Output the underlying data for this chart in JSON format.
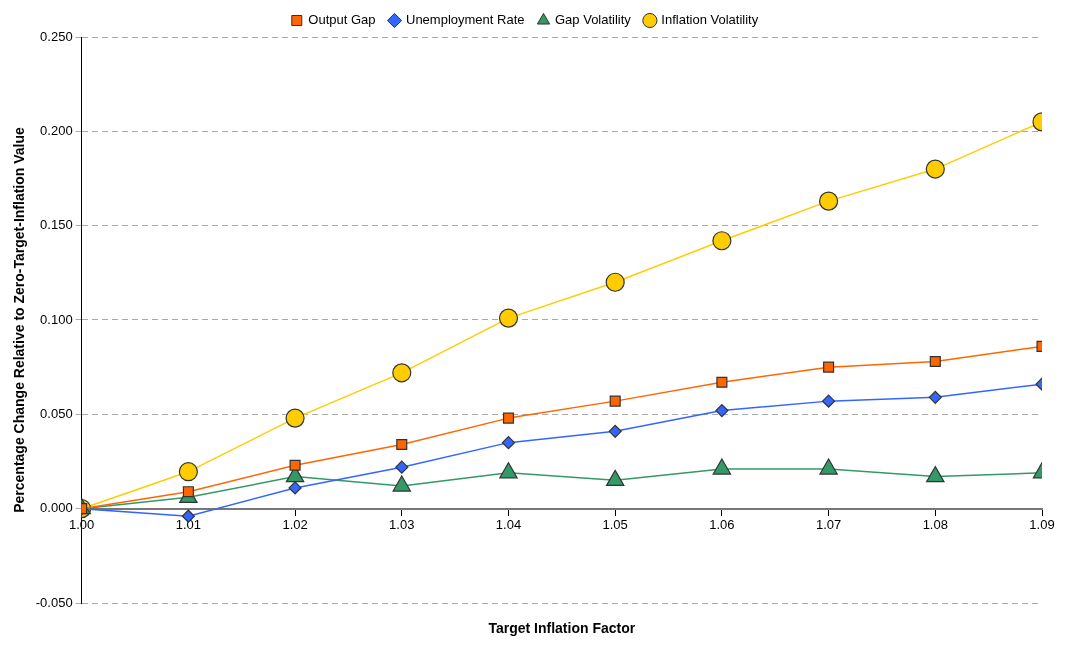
{
  "chart_data": {
    "type": "line",
    "xlabel": "Target Inflation Factor",
    "ylabel": "Percentage Change Relative to Zero-Target-Inflation Value",
    "x": [
      1.0,
      1.01,
      1.02,
      1.03,
      1.04,
      1.05,
      1.06,
      1.07,
      1.08,
      1.09
    ],
    "series": [
      {
        "name": "Output Gap",
        "color": "#ff6600",
        "marker": "square",
        "values": [
          0,
          0.009,
          0.023,
          0.034,
          0.048,
          0.057,
          0.067,
          0.075,
          0.078,
          0.086
        ]
      },
      {
        "name": "Unemployment Rate",
        "color": "#3366ff",
        "marker": "diamond",
        "values": [
          0,
          -0.004,
          0.011,
          0.022,
          0.035,
          0.041,
          0.052,
          0.057,
          0.059,
          0.066
        ]
      },
      {
        "name": "Gap Volatility",
        "color": "#339966",
        "marker": "triangle",
        "values": [
          0,
          0.006,
          0.017,
          0.012,
          0.019,
          0.015,
          0.021,
          0.021,
          0.017,
          0.019
        ]
      },
      {
        "name": "Inflation Volatility",
        "color": "#ffcc00",
        "marker": "circle",
        "values": [
          0,
          0.0196,
          0.048,
          0.072,
          0.101,
          0.12,
          0.142,
          0.163,
          0.18,
          0.205
        ]
      }
    ],
    "xlim": [
      1.0,
      1.09
    ],
    "xticks": [
      {
        "value": 1.0,
        "label": "1.00"
      },
      {
        "value": 1.01,
        "label": "1.01"
      },
      {
        "value": 1.02,
        "label": "1.02"
      },
      {
        "value": 1.03,
        "label": "1.03"
      },
      {
        "value": 1.04,
        "label": "1.04"
      },
      {
        "value": 1.05,
        "label": "1.05"
      },
      {
        "value": 1.06,
        "label": "1.06"
      },
      {
        "value": 1.07,
        "label": "1.07"
      },
      {
        "value": 1.08,
        "label": "1.08"
      },
      {
        "value": 1.09,
        "label": "1.09"
      }
    ],
    "ylim": [
      -0.05,
      0.25
    ],
    "yticks": [
      {
        "value": -0.05,
        "label": "-0.050"
      },
      {
        "value": 0,
        "label": "0.000"
      },
      {
        "value": 0.05,
        "label": "0.050"
      },
      {
        "value": 0.1,
        "label": "0.100"
      },
      {
        "value": 0.15,
        "label": "0.150"
      },
      {
        "value": 0.2,
        "label": "0.200"
      },
      {
        "value": 0.25,
        "label": "0.250"
      }
    ],
    "grid": "y",
    "legend": "top",
    "line_style": "solid"
  }
}
